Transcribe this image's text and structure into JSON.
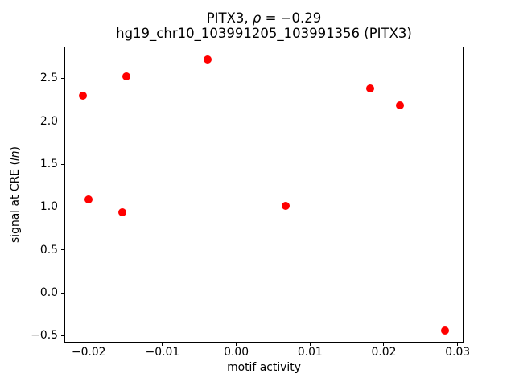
{
  "figure": {
    "title_line1_prefix": "PITX3, ",
    "title_rho": "ρ",
    "title_line1_suffix": " = −0.29",
    "title_line2": "hg19_chr10_103991205_103991356 (PITX3)",
    "xlabel": "motif activity",
    "ylabel_prefix": "signal at CRE (",
    "ylabel_italic": "ln",
    "ylabel_suffix": ")"
  },
  "chart_data": {
    "type": "scatter",
    "title": "PITX3, ρ = −0.29",
    "subtitle": "hg19_chr10_103991205_103991356 (PITX3)",
    "xlabel": "motif activity",
    "ylabel": "signal at CRE (ln)",
    "marker_color": "#ff0000",
    "grid": false,
    "legend": null,
    "xlim": [
      -0.0233,
      0.0308
    ],
    "ylim": [
      -0.58,
      2.87
    ],
    "xticks": [
      -0.02,
      -0.01,
      0.0,
      0.01,
      0.02,
      0.03
    ],
    "xtick_labels": [
      "−0.02",
      "−0.01",
      "0.00",
      "0.01",
      "0.02",
      "0.03"
    ],
    "yticks": [
      2.5,
      2.0,
      1.5,
      1.0,
      0.5,
      0.0,
      -0.5
    ],
    "ytick_labels": [
      "2.5",
      "2.0",
      "1.5",
      "1.0",
      "0.5",
      "0.0",
      "−0.5"
    ],
    "points": [
      {
        "x": -0.0208,
        "y": 2.3
      },
      {
        "x": -0.0149,
        "y": 2.52
      },
      {
        "x": -0.0039,
        "y": 2.72
      },
      {
        "x": 0.0181,
        "y": 2.38
      },
      {
        "x": 0.0222,
        "y": 2.19
      },
      {
        "x": -0.02,
        "y": 1.09
      },
      {
        "x": -0.0155,
        "y": 0.94
      },
      {
        "x": 0.0067,
        "y": 1.01
      },
      {
        "x": 0.0283,
        "y": -0.44
      }
    ]
  }
}
